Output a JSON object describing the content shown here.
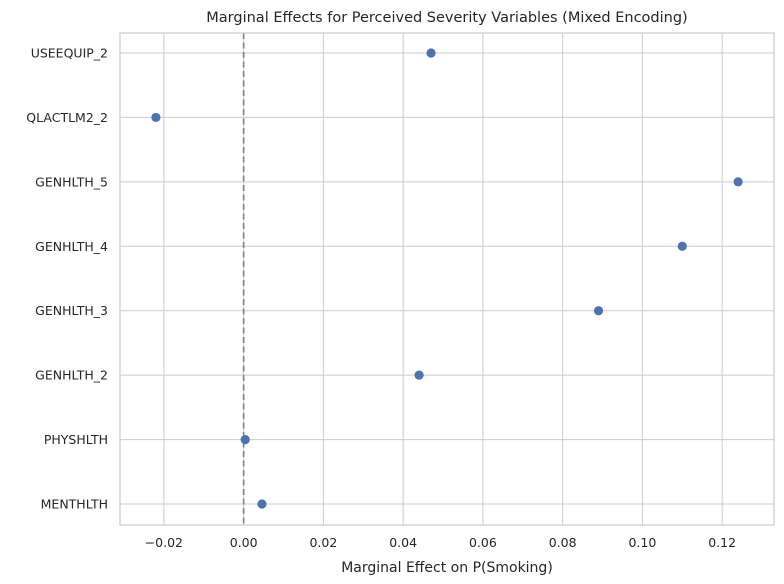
{
  "chart_data": {
    "type": "scatter",
    "title": "Marginal Effects for Perceived Severity Variables (Mixed Encoding)",
    "xlabel": "Marginal Effect on P(Smoking)",
    "ylabel": "",
    "xlim": [
      -0.031,
      0.133
    ],
    "xticks": [
      -0.02,
      0.0,
      0.02,
      0.04,
      0.06,
      0.08,
      0.1,
      0.12
    ],
    "xtick_labels": [
      "−0.02",
      "0.00",
      "0.02",
      "0.04",
      "0.06",
      "0.08",
      "0.10",
      "0.12"
    ],
    "categories": [
      "USEEQUIP_2",
      "QLACTLM2_2",
      "GENHLTH_5",
      "GENHLTH_4",
      "GENHLTH_3",
      "GENHLTH_2",
      "PHYSHLTH",
      "MENTHLTH"
    ],
    "values": [
      0.047,
      -0.022,
      0.124,
      0.11,
      0.089,
      0.044,
      0.0004,
      0.0046
    ],
    "reference_line": {
      "x": 0,
      "style": "dashed",
      "color": "#808080"
    },
    "point_color": "#4c72b0",
    "grid": true
  }
}
